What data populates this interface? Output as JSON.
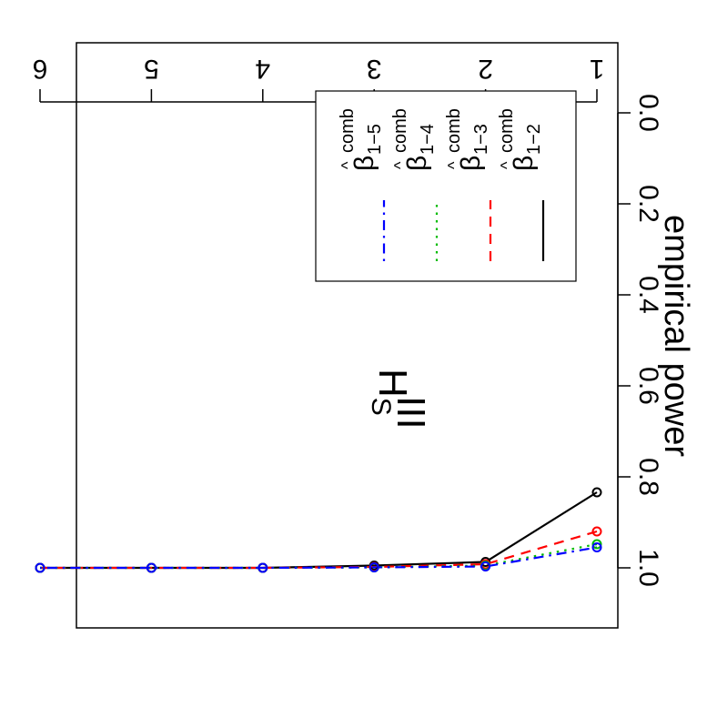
{
  "chart_data": {
    "type": "line",
    "title_main": "H",
    "title_sup": "III",
    "title_sub": "S",
    "xlabel": "",
    "ylabel": "empirical power",
    "x": [
      1,
      2,
      3,
      4,
      5,
      6
    ],
    "xlim": [
      1,
      6
    ],
    "ylim": [
      0,
      1
    ],
    "x_ticks": [
      "1",
      "2",
      "3",
      "4",
      "5",
      "6"
    ],
    "y_ticks": [
      "0.0",
      "0.2",
      "0.4",
      "0.6",
      "0.8",
      "1.0"
    ],
    "rotation_degrees": 180,
    "grid": false,
    "legend_position": "top-right (as displayed)",
    "series": [
      {
        "name_base": "β",
        "name_sub": "1−2",
        "name_sup": "comb",
        "name_hat": "^",
        "color": "#000000",
        "dash": "solid",
        "values": [
          0.834,
          0.987,
          0.995,
          1.0,
          1.0,
          1.0
        ]
      },
      {
        "name_base": "β",
        "name_sub": "1−3",
        "name_sup": "comb",
        "name_hat": "^",
        "color": "#ff0000",
        "dash": "dashed",
        "values": [
          0.92,
          0.992,
          0.998,
          1.0,
          1.0,
          1.0
        ]
      },
      {
        "name_base": "β",
        "name_sub": "1−4",
        "name_sup": "comb",
        "name_hat": "^",
        "color": "#00bb00",
        "dash": "dotted",
        "values": [
          0.948,
          0.995,
          0.999,
          1.0,
          1.0,
          1.0
        ]
      },
      {
        "name_base": "β",
        "name_sub": "1−5",
        "name_sup": "comb",
        "name_hat": "^",
        "color": "#0000ff",
        "dash": "dashdot",
        "values": [
          0.955,
          0.997,
          0.999,
          1.0,
          1.0,
          1.0
        ]
      }
    ]
  }
}
